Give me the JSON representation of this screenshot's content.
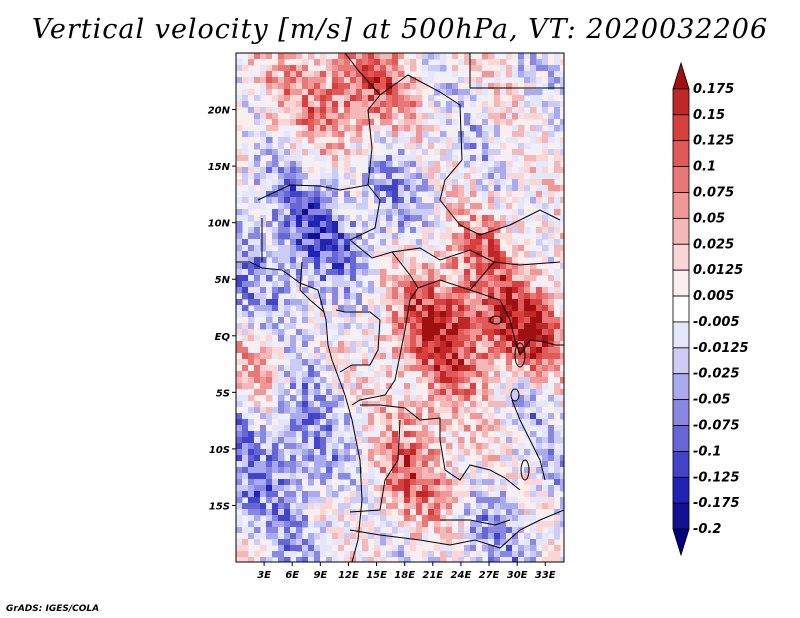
{
  "title": "Vertical velocity [m/s] at 500hPa, VT: 2020032206",
  "footer": "GrADS: IGES/COLA",
  "map": {
    "lat_labels": [
      "20N",
      "15N",
      "10N",
      "5N",
      "EQ",
      "5S",
      "10S",
      "15S"
    ],
    "lat_values": [
      20,
      15,
      10,
      5,
      0,
      -5,
      -10,
      -15
    ],
    "lon_labels": [
      "3E",
      "6E",
      "9E",
      "12E",
      "15E",
      "18E",
      "21E",
      "24E",
      "27E",
      "30E",
      "33E"
    ],
    "lon_values": [
      3,
      6,
      9,
      12,
      15,
      18,
      21,
      24,
      27,
      30,
      33
    ],
    "lon_range": [
      0,
      35
    ],
    "lat_range": [
      -20,
      25
    ],
    "field": "vertical velocity (500hPa)"
  },
  "colorbar": {
    "levels": [
      "0.175",
      "0.15",
      "0.125",
      "0.1",
      "0.075",
      "0.05",
      "0.025",
      "0.0125",
      "0.005",
      "-0.005",
      "-0.0125",
      "-0.025",
      "-0.05",
      "-0.075",
      "-0.1",
      "-0.125",
      "-0.175",
      "-0.2"
    ],
    "colors": [
      "#a01010",
      "#c02828",
      "#d84040",
      "#e05a5a",
      "#e87878",
      "#f09898",
      "#f5b8b8",
      "#fad6d6",
      "#fdeeee",
      "#ffffff",
      "#e6e6fb",
      "#ccccf5",
      "#aaaaee",
      "#8888e2",
      "#6666d6",
      "#4444c8",
      "#2222b4",
      "#101090",
      "#000080"
    ]
  }
}
